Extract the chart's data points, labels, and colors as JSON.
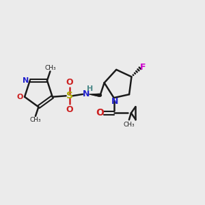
{
  "bg_color": "#ebebeb",
  "bond_color": "#1a1a1a",
  "n_color": "#2020cc",
  "o_color": "#cc2020",
  "s_color": "#aaaa00",
  "f_color": "#cc00cc",
  "h_color": "#4a8888",
  "figsize": [
    3.0,
    3.0
  ],
  "dpi": 100,
  "xlim": [
    0,
    10
  ],
  "ylim": [
    0,
    10
  ]
}
